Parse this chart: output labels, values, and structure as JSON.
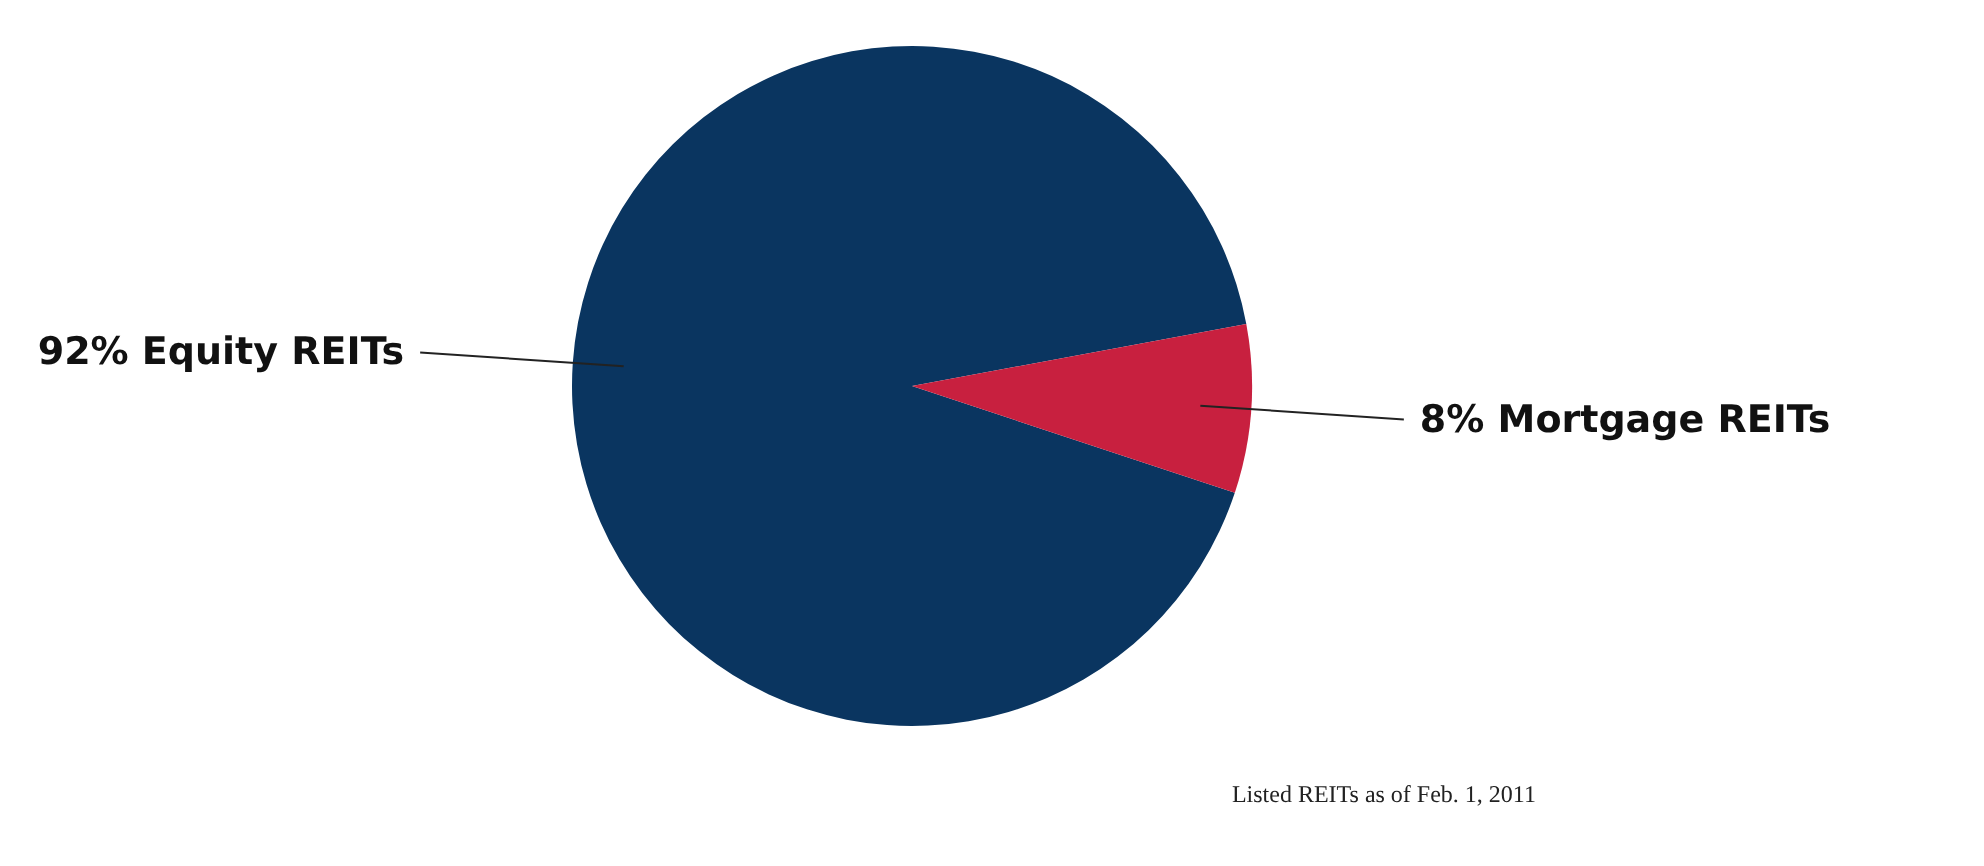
{
  "chart_data": {
    "type": "pie",
    "categories": [
      "Equity REITs",
      "Mortgage REITs"
    ],
    "values": [
      92,
      8
    ],
    "value_labels": [
      "92%",
      "8%"
    ],
    "colors": [
      "#0a3560",
      "#c8203f"
    ],
    "annotations": [
      "Listed REITs as of Feb. 1, 2011"
    ]
  }
}
